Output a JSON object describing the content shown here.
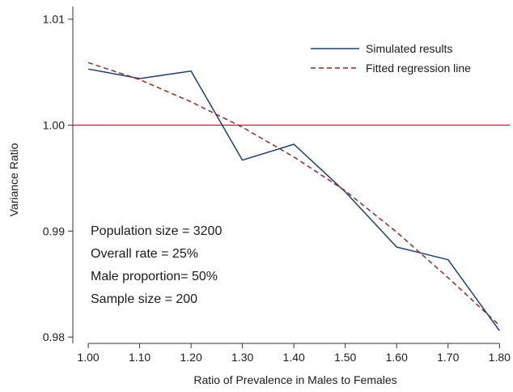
{
  "chart_data": {
    "type": "line",
    "title": "",
    "xlabel": "Ratio of Prevalence in Males to Females",
    "ylabel": "Variance Ratio",
    "xlim": [
      0.97,
      1.82
    ],
    "ylim": [
      0.9794,
      1.0112
    ],
    "x_ticks": [
      1.0,
      1.1,
      1.2,
      1.3,
      1.4,
      1.5,
      1.6,
      1.7,
      1.8
    ],
    "x_tick_labels": [
      "1.00",
      "1.10",
      "1.20",
      "1.30",
      "1.40",
      "1.50",
      "1.60",
      "1.70",
      "1.80"
    ],
    "y_ticks": [
      0.98,
      0.99,
      1.0,
      1.01
    ],
    "y_tick_labels": [
      "0.98",
      "0.99",
      "1.00",
      "1.01"
    ],
    "grid": false,
    "legend_position": "top-right",
    "reference_line": {
      "y": 1.0,
      "color": "#c0183a"
    },
    "series": [
      {
        "name": "Simulated results",
        "color": "#1f3f6e",
        "style": "solid",
        "x": [
          1.0,
          1.1,
          1.2,
          1.3,
          1.4,
          1.5,
          1.6,
          1.7,
          1.8
        ],
        "y": [
          1.0053,
          1.0044,
          1.0051,
          0.9967,
          0.9982,
          0.9937,
          0.9885,
          0.9873,
          0.9806
        ]
      },
      {
        "name": "Fitted regression line",
        "color": "#8b2a2a",
        "style": "dashed",
        "x": [
          1.0,
          1.1,
          1.2,
          1.3,
          1.4,
          1.5,
          1.6,
          1.7,
          1.8
        ],
        "y": [
          1.0059,
          1.0043,
          1.0022,
          0.9998,
          0.997,
          0.9938,
          0.9899,
          0.9856,
          0.9811
        ]
      }
    ],
    "annotations": [
      "Population size = 3200",
      "Overall rate = 25%",
      "Male proportion= 50%",
      "Sample size = 200"
    ]
  }
}
